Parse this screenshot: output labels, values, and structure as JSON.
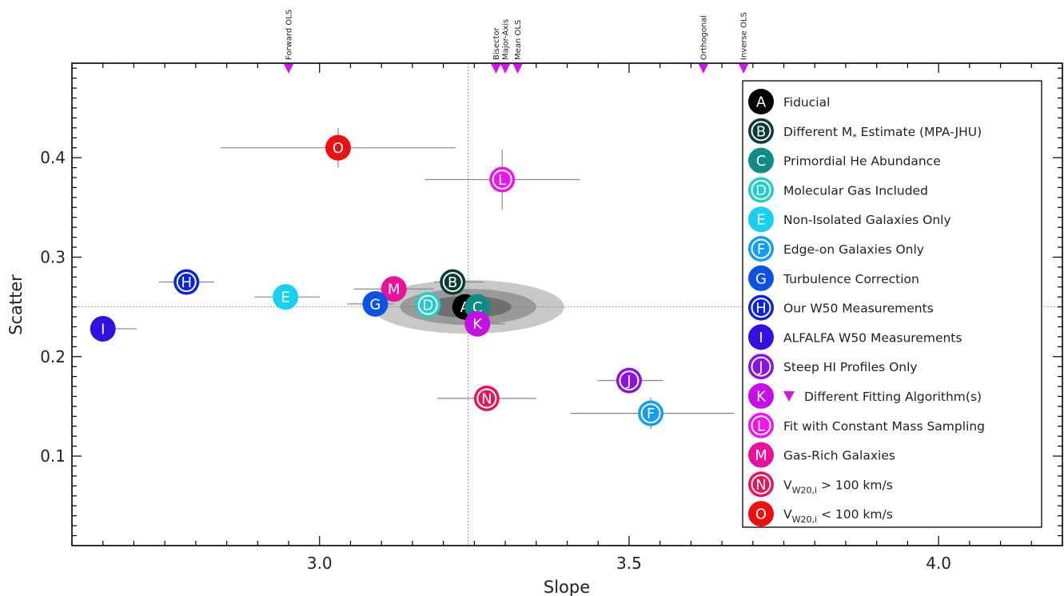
{
  "chart_data": {
    "type": "scatter",
    "title": "",
    "xlabel": "Slope",
    "ylabel": "Scatter",
    "xlim": [
      2.6,
      4.2
    ],
    "ylim": [
      0.01,
      0.495
    ],
    "x_ticks": [
      3.0,
      3.5,
      4.0
    ],
    "x_tick_labels": [
      "3.0",
      "3.5",
      "4.0"
    ],
    "y_ticks": [
      0.1,
      0.2,
      0.3,
      0.4
    ],
    "y_tick_labels": [
      "0.1",
      "0.2",
      "0.3",
      "0.4"
    ],
    "grid": false,
    "legend_position": "right",
    "reference_lines": {
      "fiducial_slope": 3.24,
      "fiducial_scatter": 0.25
    },
    "fiducial_contours": {
      "center": [
        3.24,
        0.25
      ],
      "half_widths": [
        [
          0.155,
          0.027
        ],
        [
          0.11,
          0.018
        ],
        [
          0.07,
          0.011
        ]
      ]
    },
    "points": [
      {
        "label": "A",
        "x": 3.235,
        "y": 0.25,
        "xerr": [
          0.0,
          0.0
        ],
        "yerr": [
          0.0,
          0.0
        ],
        "color": "#000000",
        "style": "filled"
      },
      {
        "label": "B",
        "x": 3.215,
        "y": 0.275,
        "xerr": [
          0.03,
          0.05
        ],
        "yerr": [
          0.0,
          0.0
        ],
        "color": "#0b3a37",
        "style": "ring"
      },
      {
        "label": "C",
        "x": 3.255,
        "y": 0.25,
        "xerr": [
          0.0,
          0.0
        ],
        "yerr": [
          0.0,
          0.0
        ],
        "color": "#0e8b84",
        "style": "filled"
      },
      {
        "label": "D",
        "x": 3.175,
        "y": 0.252,
        "xerr": [
          0.0,
          0.0
        ],
        "yerr": [
          0.0,
          0.0
        ],
        "color": "#1fcec6",
        "style": "ring"
      },
      {
        "label": "E",
        "x": 2.945,
        "y": 0.26,
        "xerr": [
          0.05,
          0.055
        ],
        "yerr": [
          0.0,
          0.0
        ],
        "color": "#16d2f0",
        "style": "filled"
      },
      {
        "label": "F",
        "x": 3.535,
        "y": 0.143,
        "xerr": [
          0.13,
          0.135
        ],
        "yerr": [
          0.016,
          0.016
        ],
        "color": "#129ef0",
        "style": "ring"
      },
      {
        "label": "G",
        "x": 3.09,
        "y": 0.253,
        "xerr": [
          0.045,
          0.03
        ],
        "yerr": [
          0.0,
          0.0
        ],
        "color": "#0d52e5",
        "style": "filled"
      },
      {
        "label": "H",
        "x": 2.785,
        "y": 0.275,
        "xerr": [
          0.045,
          0.045
        ],
        "yerr": [
          0.0,
          0.0
        ],
        "color": "#0b22e0",
        "style": "ring"
      },
      {
        "label": "I",
        "x": 2.65,
        "y": 0.228,
        "xerr": [
          0.0,
          0.055
        ],
        "yerr": [
          0.0,
          0.0
        ],
        "color": "#3410e0",
        "style": "filled"
      },
      {
        "label": "J",
        "x": 3.5,
        "y": 0.176,
        "xerr": [
          0.05,
          0.055
        ],
        "yerr": [
          0.0,
          0.0
        ],
        "color": "#8a12e5",
        "style": "ring"
      },
      {
        "label": "K",
        "x": 3.255,
        "y": 0.233,
        "xerr": [
          0.04,
          0.045
        ],
        "yerr": [
          0.0,
          0.0
        ],
        "color": "#c40fe5",
        "style": "filled"
      },
      {
        "label": "L",
        "x": 3.295,
        "y": 0.378,
        "xerr": [
          0.125,
          0.125
        ],
        "yerr": [
          0.03,
          0.03
        ],
        "color": "#ee14ee",
        "style": "ring"
      },
      {
        "label": "M",
        "x": 3.12,
        "y": 0.268,
        "xerr": [
          0.065,
          0.065
        ],
        "yerr": [
          0.0,
          0.0
        ],
        "color": "#e8129a",
        "style": "filled"
      },
      {
        "label": "N",
        "x": 3.27,
        "y": 0.158,
        "xerr": [
          0.08,
          0.08
        ],
        "yerr": [
          0.0,
          0.0
        ],
        "color": "#e8145a",
        "style": "ring"
      },
      {
        "label": "O",
        "x": 3.03,
        "y": 0.41,
        "xerr": [
          0.19,
          0.19
        ],
        "yerr": [
          0.02,
          0.02
        ],
        "color": "#ec1010",
        "style": "filled"
      }
    ],
    "fitting_algorithms": [
      {
        "name": "Forward OLS",
        "slope": 2.95
      },
      {
        "name": "Bisector",
        "slope": 3.285
      },
      {
        "name": "Major-Axis",
        "slope": 3.3
      },
      {
        "name": "Mean OLS",
        "slope": 3.32
      },
      {
        "name": "Orthogonal",
        "slope": 3.62
      },
      {
        "name": "Inverse OLS",
        "slope": 3.685
      }
    ],
    "marker_color": "#d313f0",
    "legend": [
      {
        "key": "A",
        "text": "Fiducial",
        "sub": "",
        "suffix": ""
      },
      {
        "key": "B",
        "text": "Different M",
        "sub": "*",
        "suffix": " Estimate (MPA-JHU)"
      },
      {
        "key": "C",
        "text": "Primordial He Abundance",
        "sub": "",
        "suffix": ""
      },
      {
        "key": "D",
        "text": "Molecular Gas Included",
        "sub": "",
        "suffix": ""
      },
      {
        "key": "E",
        "text": "Non-Isolated Galaxies Only",
        "sub": "",
        "suffix": ""
      },
      {
        "key": "F",
        "text": "Edge-on Galaxies Only",
        "sub": "",
        "suffix": ""
      },
      {
        "key": "G",
        "text": "Turbulence Correction",
        "sub": "",
        "suffix": ""
      },
      {
        "key": "H",
        "text": "Our W50 Measurements",
        "sub": "",
        "suffix": ""
      },
      {
        "key": "I",
        "text": "ALFALFA W50 Measurements",
        "sub": "",
        "suffix": ""
      },
      {
        "key": "J",
        "text": "Steep HI Profiles Only",
        "sub": "",
        "suffix": ""
      },
      {
        "key": "K",
        "text": "Different Fitting Algorithm(s)",
        "sub": "",
        "suffix": "",
        "triangle": true
      },
      {
        "key": "L",
        "text": "Fit with Constant Mass Sampling",
        "sub": "",
        "suffix": ""
      },
      {
        "key": "M",
        "text": "Gas-Rich Galaxies",
        "sub": "",
        "suffix": ""
      },
      {
        "key": "N",
        "text": "V",
        "sub": "W20,i",
        "suffix": " > 100 km/s"
      },
      {
        "key": "O",
        "text": "V",
        "sub": "W20,i",
        "suffix": " < 100 km/s"
      }
    ]
  }
}
